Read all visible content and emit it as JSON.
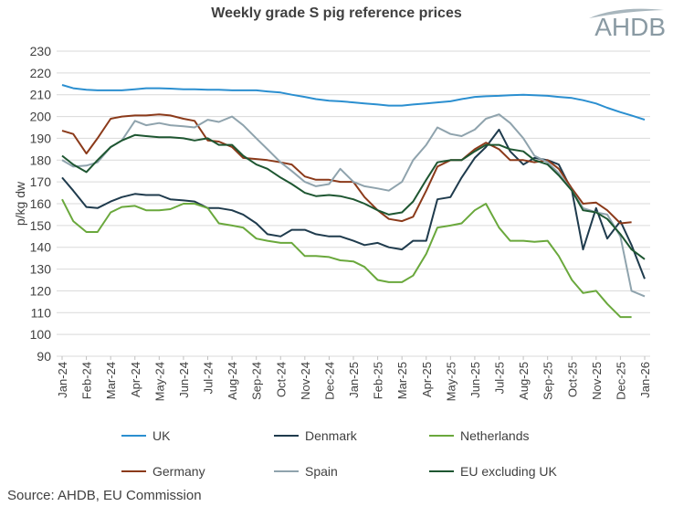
{
  "logo": {
    "text": "AHDB",
    "color": "#8a9aa3"
  },
  "source": "Source: AHDB, EU Commission",
  "chart_data": {
    "type": "line",
    "title": "Weekly grade S pig reference prices",
    "xlabel": "",
    "ylabel": "p/kg dw",
    "ylim": [
      90,
      230
    ],
    "yticks": [
      90,
      100,
      110,
      120,
      130,
      140,
      150,
      160,
      170,
      180,
      190,
      200,
      210,
      220,
      230
    ],
    "xtick_labels": [
      "Jan-24",
      "Feb-24",
      "Mar-24",
      "Apr-24",
      "May-24",
      "Jun-24",
      "Jul-24",
      "Aug-24",
      "Sep-24",
      "Oct-24",
      "Nov-24",
      "Dec-24",
      "Jan-25",
      "Feb-25",
      "Mar-25",
      "Apr-25",
      "May-25",
      "Jun-25",
      "Jul-25",
      "Aug-25",
      "Sep-25",
      "Oct-25",
      "Nov-25",
      "Dec-25",
      "Jan-26"
    ],
    "grid": true,
    "legend_position": "bottom",
    "x": [
      "2024-01-01",
      "2024-01-15",
      "2024-02-01",
      "2024-02-15",
      "2024-03-01",
      "2024-03-15",
      "2024-04-01",
      "2024-04-15",
      "2024-05-01",
      "2024-05-15",
      "2024-06-01",
      "2024-06-15",
      "2024-07-01",
      "2024-07-15",
      "2024-08-01",
      "2024-08-15",
      "2024-09-01",
      "2024-09-15",
      "2024-10-01",
      "2024-10-15",
      "2024-11-01",
      "2024-11-15",
      "2024-12-01",
      "2024-12-15",
      "2025-01-01",
      "2025-01-15",
      "2025-02-01",
      "2025-02-15",
      "2025-03-01",
      "2025-03-15",
      "2025-04-01",
      "2025-04-15",
      "2025-05-01",
      "2025-05-15",
      "2025-06-01",
      "2025-06-15",
      "2025-07-01",
      "2025-07-15",
      "2025-08-01",
      "2025-08-15",
      "2025-09-01",
      "2025-09-15",
      "2025-10-01",
      "2025-10-15",
      "2025-11-01",
      "2025-11-15",
      "2025-12-01",
      "2025-12-15",
      "2026-01-01"
    ],
    "series": [
      {
        "name": "UK",
        "color": "#2b8fd0",
        "values": [
          214.5,
          213,
          212.3,
          212,
          212,
          212,
          212.5,
          213,
          213,
          212.8,
          212.5,
          212.5,
          212.3,
          212.3,
          212,
          212,
          212,
          211.5,
          211,
          210,
          209,
          208,
          207.3,
          207,
          206.5,
          206,
          205.5,
          205,
          205,
          205.5,
          206,
          206.5,
          207,
          208,
          209,
          209.3,
          209.5,
          209.8,
          210,
          209.8,
          209.5,
          209,
          208.5,
          207.5,
          206,
          204,
          202,
          200.5,
          198.5
        ]
      },
      {
        "name": "Denmark",
        "color": "#1f3b4d",
        "values": [
          172,
          166,
          158.5,
          158,
          161,
          163,
          164.5,
          164,
          164,
          162,
          161.5,
          161,
          158,
          158,
          157,
          155,
          151,
          146,
          145,
          148,
          148,
          146,
          145,
          145,
          143,
          141,
          142,
          140,
          139,
          143,
          143,
          162,
          163,
          172,
          181,
          186,
          194,
          184,
          178,
          181,
          180,
          178,
          166,
          139,
          158,
          144,
          152,
          141,
          125.5
        ]
      },
      {
        "name": "Netherlands",
        "color": "#6aa83c",
        "values": [
          162,
          152,
          147,
          147,
          156,
          158.5,
          159,
          157,
          157,
          157.5,
          160,
          160,
          158,
          151,
          150,
          149,
          144,
          143,
          142,
          142,
          136,
          136,
          135.5,
          134,
          133.5,
          131,
          125,
          124,
          124,
          127,
          137,
          149,
          150,
          151,
          157,
          160,
          149,
          143,
          143,
          142.5,
          143,
          136,
          125,
          119,
          120,
          114,
          108,
          108,
          null
        ]
      },
      {
        "name": "Germany",
        "color": "#8b3a1a",
        "values": [
          193.5,
          192,
          183,
          190,
          199,
          200,
          200.5,
          200.5,
          201,
          200.5,
          199,
          198,
          189,
          188.5,
          186,
          181,
          180.5,
          180,
          179,
          178,
          172.5,
          171,
          171,
          170,
          170,
          163,
          157,
          153,
          152,
          154,
          166,
          177,
          180,
          180,
          185,
          188,
          185,
          180,
          180,
          179,
          180,
          176,
          167,
          160,
          160.5,
          157,
          151,
          151.5,
          null
        ]
      },
      {
        "name": "Spain",
        "color": "#8fa3ad",
        "values": [
          180,
          177,
          177.5,
          179,
          186,
          189,
          198,
          196,
          197,
          196,
          195.5,
          195,
          198.5,
          197.5,
          200,
          196,
          190,
          185,
          179,
          175,
          170,
          168,
          169,
          176,
          170,
          168,
          167,
          166,
          170,
          180,
          187,
          195,
          192,
          191,
          194,
          199,
          201,
          197,
          190,
          182,
          179,
          174,
          166,
          158,
          156,
          155,
          145,
          120,
          117.5
        ]
      },
      {
        "name": "EU excluding UK",
        "color": "#1e5631",
        "values": [
          182,
          178,
          174.5,
          180,
          186,
          189,
          191.5,
          191,
          190.5,
          190.5,
          190,
          189,
          190,
          187,
          187,
          182,
          178,
          176,
          172,
          169,
          165,
          163.5,
          164,
          163.5,
          162,
          160,
          157,
          155,
          156,
          161,
          171,
          179,
          180,
          180,
          184,
          187,
          187,
          185,
          184,
          180,
          178,
          173,
          166,
          157,
          156,
          153,
          146,
          139,
          134.5
        ]
      }
    ]
  }
}
